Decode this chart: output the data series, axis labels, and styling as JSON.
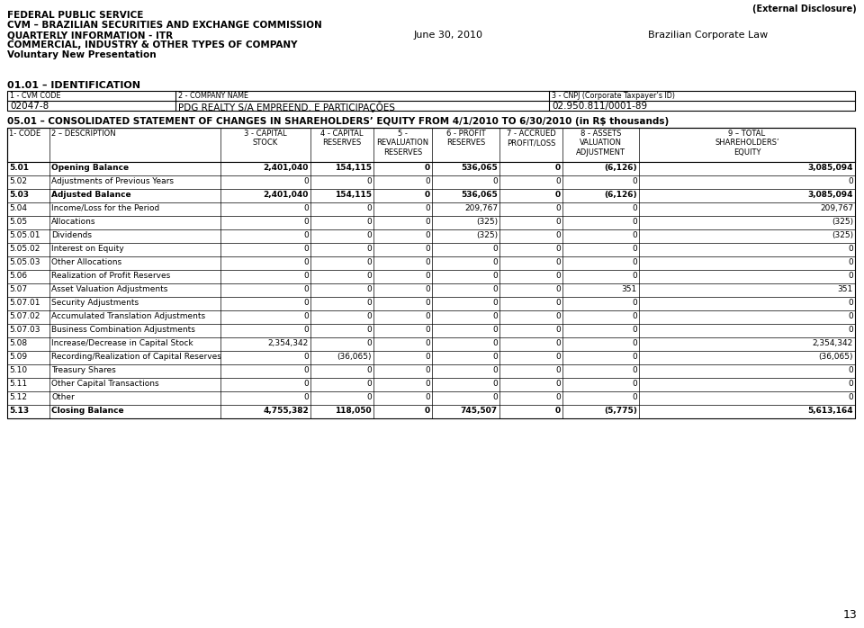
{
  "page_number": "13",
  "header_lines": [
    "FEDERAL PUBLIC SERVICE",
    "CVM – BRAZILIAN SECURITIES AND EXCHANGE COMMISSION",
    "QUARTERLY INFORMATION - ITR",
    "COMMERCIAL, INDUSTRY & OTHER TYPES OF COMPANY",
    "Voluntary New Presentation"
  ],
  "header_date": "June 30, 2010",
  "header_law": "Brazilian Corporate Law",
  "external_disclosure": "(External Disclosure)",
  "section_id": "01.01 – IDENTIFICATION",
  "id_table": {
    "col1_header": "1 - CVM CODE",
    "col2_header": "2 - COMPANY NAME",
    "col3_header": "3 - CNPJ (Corporate Taxpayer’s ID)",
    "col1_val": "02047-8",
    "col2_val": "PDG REALTY S/A EMPREEND. E PARTICIPAÇÕES",
    "col3_val": "02.950.811/0001-89"
  },
  "section_title": "05.01 – CONSOLIDATED STATEMENT OF CHANGES IN SHAREHOLDERS’ EQUITY FROM 4/1/2010 TO 6/30/2010 (in R$ thousands)",
  "table_headers": [
    "1- CODE",
    "2 – DESCRIPTION",
    "3 - CAPITAL\nSTOCK",
    "4 - CAPITAL\nRESERVES",
    "5 -\nREVALUATION\nRESERVES",
    "6 - PROFIT\nRESERVES",
    "7 - ACCRUED\nPROFIT/LOSS",
    "8 - ASSETS\nVALUATION\nADJUSTMENT",
    "9 – TOTAL\nSHAREHOLDERS’\nEQUITY"
  ],
  "rows": [
    [
      "5.01",
      "Opening Balance",
      "2,401,040",
      "154,115",
      "0",
      "536,065",
      "0",
      "(6,126)",
      "3,085,094"
    ],
    [
      "5.02",
      "Adjustments of Previous Years",
      "0",
      "0",
      "0",
      "0",
      "0",
      "0",
      "0"
    ],
    [
      "5.03",
      "Adjusted Balance",
      "2,401,040",
      "154,115",
      "0",
      "536,065",
      "0",
      "(6,126)",
      "3,085,094"
    ],
    [
      "5.04",
      "Income/Loss for the Period",
      "0",
      "0",
      "0",
      "209,767",
      "0",
      "0",
      "209,767"
    ],
    [
      "5.05",
      "Allocations",
      "0",
      "0",
      "0",
      "(325)",
      "0",
      "0",
      "(325)"
    ],
    [
      "5.05.01",
      "Dividends",
      "0",
      "0",
      "0",
      "(325)",
      "0",
      "0",
      "(325)"
    ],
    [
      "5.05.02",
      "Interest on Equity",
      "0",
      "0",
      "0",
      "0",
      "0",
      "0",
      "0"
    ],
    [
      "5.05.03",
      "Other Allocations",
      "0",
      "0",
      "0",
      "0",
      "0",
      "0",
      "0"
    ],
    [
      "5.06",
      "Realization of Profit Reserves",
      "0",
      "0",
      "0",
      "0",
      "0",
      "0",
      "0"
    ],
    [
      "5.07",
      "Asset Valuation Adjustments",
      "0",
      "0",
      "0",
      "0",
      "0",
      "351",
      "351"
    ],
    [
      "5.07.01",
      "Security Adjustments",
      "0",
      "0",
      "0",
      "0",
      "0",
      "0",
      "0"
    ],
    [
      "5.07.02",
      "Accumulated Translation Adjustments",
      "0",
      "0",
      "0",
      "0",
      "0",
      "0",
      "0"
    ],
    [
      "5.07.03",
      "Business Combination Adjustments",
      "0",
      "0",
      "0",
      "0",
      "0",
      "0",
      "0"
    ],
    [
      "5.08",
      "Increase/Decrease in Capital Stock",
      "2,354,342",
      "0",
      "0",
      "0",
      "0",
      "0",
      "2,354,342"
    ],
    [
      "5.09",
      "Recording/Realization of Capital Reserves",
      "0",
      "(36,065)",
      "0",
      "0",
      "0",
      "0",
      "(36,065)"
    ],
    [
      "5.10",
      "Treasury Shares",
      "0",
      "0",
      "0",
      "0",
      "0",
      "0",
      "0"
    ],
    [
      "5.11",
      "Other Capital Transactions",
      "0",
      "0",
      "0",
      "0",
      "0",
      "0",
      "0"
    ],
    [
      "5.12",
      "Other",
      "0",
      "0",
      "0",
      "0",
      "0",
      "0",
      "0"
    ],
    [
      "5.13",
      "Closing Balance",
      "4,755,382",
      "118,050",
      "0",
      "745,507",
      "0",
      "(5,775)",
      "5,613,164"
    ]
  ],
  "bold_rows": [
    0,
    2,
    18
  ],
  "col_lefts": [
    8,
    55,
    245,
    345,
    415,
    480,
    555,
    625,
    710
  ],
  "col_rights": [
    55,
    245,
    345,
    415,
    480,
    555,
    625,
    710,
    950
  ],
  "id_col_lefts": [
    8,
    195,
    610
  ],
  "id_col_rights": [
    195,
    610,
    950
  ]
}
